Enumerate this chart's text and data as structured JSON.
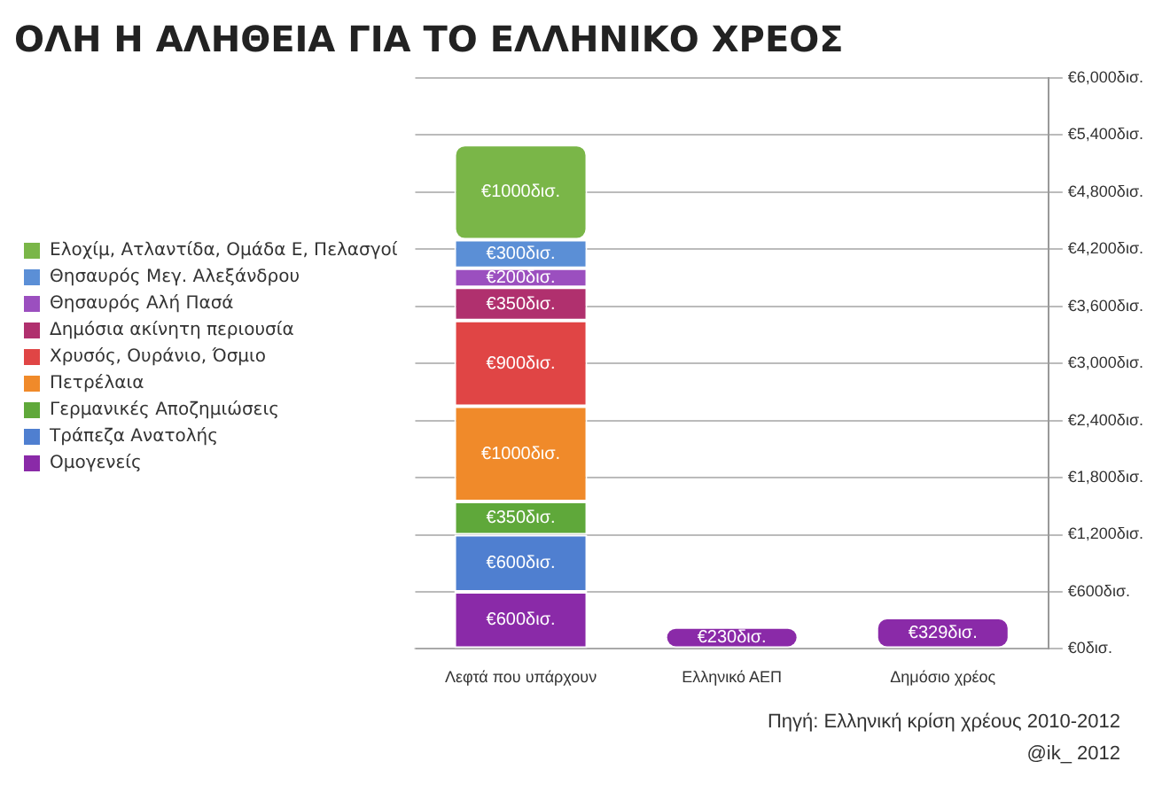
{
  "chart_data": {
    "type": "bar",
    "title": "ΟΛΗ Η ΑΛΗΘΕΙΑ ΓΙΑ ΤΟ ΕΛΛΗΝΙΚΟ ΧΡΕΟΣ",
    "categories": [
      "Λεφτά που υπάρχουν",
      "Ελληνικό ΑΕΠ",
      "Δημόσιο χρέος"
    ],
    "stacked": true,
    "legend": "left",
    "grid": "y",
    "ylim": [
      0,
      6000
    ],
    "yticks": [
      {
        "value": 0,
        "label": "€0δισ."
      },
      {
        "value": 600,
        "label": "€600δισ."
      },
      {
        "value": 1200,
        "label": "€1,200δισ."
      },
      {
        "value": 1800,
        "label": "€1,800δισ."
      },
      {
        "value": 2400,
        "label": "€2,400δισ."
      },
      {
        "value": 3000,
        "label": "€3,000δισ."
      },
      {
        "value": 3600,
        "label": "€3,600δισ."
      },
      {
        "value": 4200,
        "label": "€4,200δισ."
      },
      {
        "value": 4800,
        "label": "€4,800δισ."
      },
      {
        "value": 5400,
        "label": "€5,400δισ."
      },
      {
        "value": 6000,
        "label": "€6,000δισ."
      }
    ],
    "series": [
      {
        "name": "Ομογενείς",
        "color": "#8a2aa8",
        "values": [
          600,
          230,
          329
        ],
        "value_labels": [
          "€600δισ.",
          "€230δισ.",
          "€329δισ."
        ]
      },
      {
        "name": "Τράπεζα Ανατολής",
        "color": "#4f7fd0",
        "values": [
          600,
          null,
          null
        ],
        "value_labels": [
          "€600δισ.",
          null,
          null
        ]
      },
      {
        "name": "Γερμανικές Αποζημιώσεις",
        "color": "#5fa83a",
        "values": [
          350,
          null,
          null
        ],
        "value_labels": [
          "€350δισ.",
          null,
          null
        ]
      },
      {
        "name": "Πετρέλαια",
        "color": "#f08a2a",
        "values": [
          1000,
          null,
          null
        ],
        "value_labels": [
          "€1000δισ.",
          null,
          null
        ]
      },
      {
        "name": "Χρυσός, Ουράνιο, Όσμιο",
        "color": "#e04545",
        "values": [
          900,
          null,
          null
        ],
        "value_labels": [
          "€900δισ.",
          null,
          null
        ]
      },
      {
        "name": "Δημόσια ακίνητη περιουσία",
        "color": "#b0306e",
        "values": [
          350,
          null,
          null
        ],
        "value_labels": [
          "€350δισ.",
          null,
          null
        ]
      },
      {
        "name": "Θησαυρός Αλή Πασά",
        "color": "#9b4fbf",
        "values": [
          200,
          null,
          null
        ],
        "value_labels": [
          "€200δισ.",
          null,
          null
        ]
      },
      {
        "name": "Θησαυρός Μεγ. Αλεξάνδρου",
        "color": "#5b8fd6",
        "values": [
          300,
          null,
          null
        ],
        "value_labels": [
          "€300δισ.",
          null,
          null
        ]
      },
      {
        "name": "Ελοχίμ, Ατλαντίδα, Ομάδα Ε, Πελασγοί",
        "color": "#7ab648",
        "values": [
          1000,
          null,
          null
        ],
        "value_labels": [
          "€1000δισ.",
          null,
          null
        ]
      }
    ],
    "annotations": [
      "Πηγή: Ελληνική κρίση χρέους 2010-2012",
      "@ik_ 2012"
    ]
  }
}
